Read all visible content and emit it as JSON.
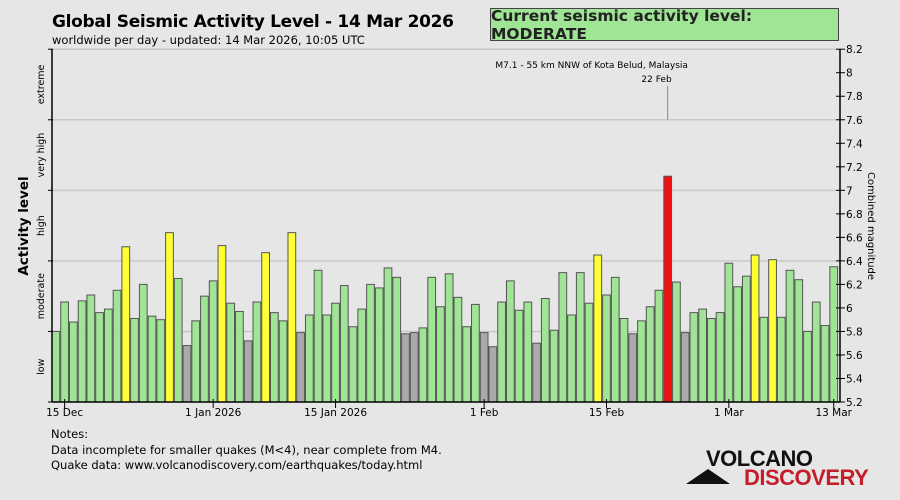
{
  "header": {
    "title": "Global Seismic Activity Level - 14 Mar 2026",
    "subtitle": "worldwide per day - updated: 14 Mar 2026, 10:05 UTC"
  },
  "status_box": {
    "text": "Current seismic activity level: MODERATE",
    "color": "#a0e496"
  },
  "notes": {
    "heading": "Notes:",
    "line1": "Data incomplete for smaller quakes (M<4), near complete from M4.",
    "line2": "Quake data: www.volcanodiscovery.com/earthquakes/today.html"
  },
  "logo": {
    "line1": "VOLCANO",
    "line2": "DISCOVERY"
  },
  "chart_data": {
    "type": "bar",
    "title": "Global Seismic Activity Level - 14 Mar 2026",
    "ylabel": "Activity level",
    "y2label": "Combined magnitude",
    "ylim": [
      5.2,
      8.2
    ],
    "y_ticks": [
      "5.2",
      "5.4",
      "5.6",
      "5.8",
      "6",
      "6.2",
      "6.4",
      "6.6",
      "6.8",
      "7",
      "7.2",
      "7.4",
      "7.6",
      "7.8",
      "8",
      "8.2"
    ],
    "level_labels": [
      {
        "label": "low",
        "from": 5.2,
        "to": 5.8
      },
      {
        "label": "moderate",
        "from": 5.8,
        "to": 6.4
      },
      {
        "label": "high",
        "from": 6.4,
        "to": 7.0
      },
      {
        "label": "very high",
        "from": 7.0,
        "to": 7.6
      },
      {
        "label": "extreme",
        "from": 7.6,
        "to": 8.2
      }
    ],
    "gridlines": [
      5.8,
      6.4,
      7.0,
      7.6,
      8.2
    ],
    "bar_colors": {
      "below_5.8": "#aaaaaa",
      "5.8_to_6.4": "#a0e496",
      "6.4_to_7.0": "#ffff33",
      "7.0_plus": "#ee1111"
    },
    "x_tick_labels": [
      {
        "label": "15 Dec",
        "date": "15 Dec"
      },
      {
        "label": "1 Jan 2026",
        "date": "1 Jan"
      },
      {
        "label": "15 Jan 2026",
        "date": "15 Jan"
      },
      {
        "label": "1 Feb",
        "date": "1 Feb"
      },
      {
        "label": "15 Feb",
        "date": "15 Feb"
      },
      {
        "label": "1 Mar",
        "date": "1 Mar"
      },
      {
        "label": "13 Mar",
        "date": "13 Mar"
      }
    ],
    "dates": [
      "14 Dec",
      "15 Dec",
      "16 Dec",
      "17 Dec",
      "18 Dec",
      "19 Dec",
      "20 Dec",
      "21 Dec",
      "22 Dec",
      "23 Dec",
      "24 Dec",
      "25 Dec",
      "26 Dec",
      "27 Dec",
      "28 Dec",
      "29 Dec",
      "30 Dec",
      "31 Dec",
      "1 Jan",
      "2 Jan",
      "3 Jan",
      "4 Jan",
      "5 Jan",
      "6 Jan",
      "7 Jan",
      "8 Jan",
      "9 Jan",
      "10 Jan",
      "11 Jan",
      "12 Jan",
      "13 Jan",
      "14 Jan",
      "15 Jan",
      "16 Jan",
      "17 Jan",
      "18 Jan",
      "19 Jan",
      "20 Jan",
      "21 Jan",
      "22 Jan",
      "23 Jan",
      "24 Jan",
      "25 Jan",
      "26 Jan",
      "27 Jan",
      "28 Jan",
      "29 Jan",
      "30 Jan",
      "31 Jan",
      "1 Feb",
      "2 Feb",
      "3 Feb",
      "4 Feb",
      "5 Feb",
      "6 Feb",
      "7 Feb",
      "8 Feb",
      "9 Feb",
      "10 Feb",
      "11 Feb",
      "12 Feb",
      "13 Feb",
      "14 Feb",
      "15 Feb",
      "16 Feb",
      "17 Feb",
      "18 Feb",
      "19 Feb",
      "20 Feb",
      "21 Feb",
      "22 Feb",
      "23 Feb",
      "24 Feb",
      "25 Feb",
      "26 Feb",
      "27 Feb",
      "28 Feb",
      "1 Mar",
      "2 Mar",
      "3 Mar",
      "4 Mar",
      "5 Mar",
      "6 Mar",
      "7 Mar",
      "8 Mar",
      "9 Mar",
      "10 Mar",
      "11 Mar",
      "12 Mar",
      "13 Mar"
    ],
    "values": [
      5.8,
      6.05,
      5.88,
      6.06,
      6.11,
      5.96,
      5.99,
      6.15,
      6.52,
      5.91,
      6.2,
      5.93,
      5.9,
      6.64,
      6.25,
      5.68,
      5.89,
      6.1,
      6.23,
      6.53,
      6.04,
      5.97,
      5.72,
      6.05,
      6.47,
      5.96,
      5.89,
      6.64,
      5.79,
      5.94,
      6.32,
      5.94,
      6.04,
      6.19,
      5.84,
      5.99,
      6.2,
      6.17,
      6.34,
      6.26,
      5.78,
      5.79,
      5.83,
      6.26,
      6.01,
      6.29,
      6.09,
      5.84,
      6.03,
      5.79,
      5.67,
      6.05,
      6.23,
      5.98,
      6.05,
      5.7,
      6.08,
      5.81,
      6.3,
      5.94,
      6.3,
      6.04,
      6.45,
      6.11,
      6.26,
      5.91,
      5.78,
      5.89,
      6.01,
      6.15,
      7.12,
      6.22,
      5.79,
      5.96,
      5.99,
      5.91,
      5.96,
      6.38,
      6.18,
      6.27,
      6.45,
      5.92,
      6.41,
      5.92,
      6.32,
      6.24,
      5.8,
      6.05,
      5.85,
      6.35
    ],
    "annotation": {
      "text": "M7.1 - 55 km NNW of Kota Belud, Malaysia",
      "date": "22 Feb",
      "date_label": "22 Feb"
    }
  }
}
